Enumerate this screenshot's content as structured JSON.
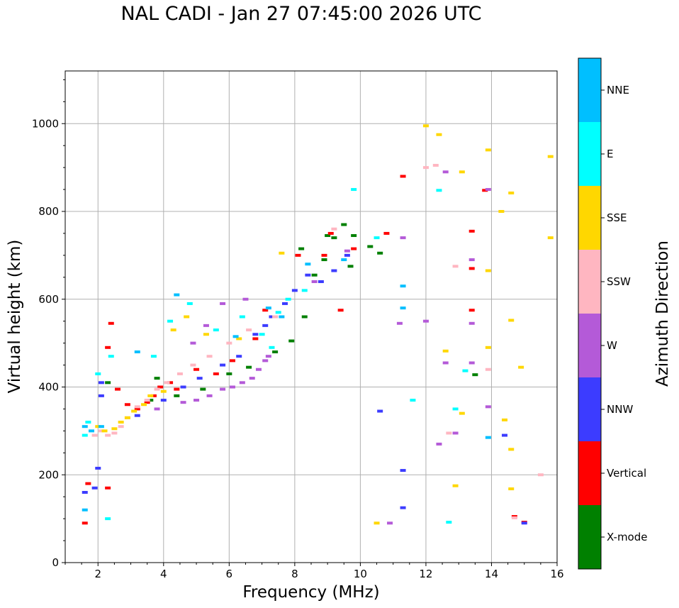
{
  "chart_data": {
    "type": "scatter",
    "title": "NAL CADI - Jan 27 07:45:00 2026 UTC",
    "xlabel": "Frequency (MHz)",
    "ylabel": "Virtual height (km)",
    "xlim": [
      1,
      16
    ],
    "ylim": [
      0,
      1120
    ],
    "xticks": [
      2,
      4,
      6,
      8,
      10,
      12,
      14,
      16
    ],
    "yticks": [
      0,
      200,
      400,
      600,
      800,
      1000
    ],
    "grid": true,
    "colorbar": {
      "label": "Azimuth Direction",
      "categories": [
        "X-mode",
        "Vertical",
        "NNW",
        "W",
        "SSW",
        "SSE",
        "E",
        "NNE"
      ],
      "colors": [
        "#008000",
        "#ff0000",
        "#3c3cff",
        "#b45ad8",
        "#ffb6c1",
        "#ffd700",
        "#00ffff",
        "#00bfff"
      ]
    },
    "series": [
      {
        "name": "X-mode",
        "points": [
          [
            3.6,
            370
          ],
          [
            4.4,
            380
          ],
          [
            5.2,
            395
          ],
          [
            6.0,
            430
          ],
          [
            6.6,
            445
          ],
          [
            7.4,
            480
          ],
          [
            7.9,
            505
          ],
          [
            8.3,
            560
          ],
          [
            8.6,
            655
          ],
          [
            8.9,
            690
          ],
          [
            9.0,
            745
          ],
          [
            9.2,
            740
          ],
          [
            9.5,
            770
          ],
          [
            9.8,
            745
          ],
          [
            10.3,
            720
          ],
          [
            10.6,
            705
          ],
          [
            13.5,
            428
          ],
          [
            3.8,
            420
          ],
          [
            2.3,
            410
          ],
          [
            8.2,
            715
          ],
          [
            9.7,
            675
          ]
        ]
      },
      {
        "name": "Vertical",
        "points": [
          [
            1.6,
            90
          ],
          [
            1.7,
            180
          ],
          [
            2.3,
            170
          ],
          [
            2.4,
            545
          ],
          [
            2.3,
            490
          ],
          [
            2.9,
            360
          ],
          [
            3.2,
            350
          ],
          [
            3.5,
            365
          ],
          [
            3.7,
            380
          ],
          [
            3.9,
            400
          ],
          [
            4.2,
            410
          ],
          [
            4.4,
            395
          ],
          [
            5.0,
            440
          ],
          [
            5.6,
            430
          ],
          [
            6.1,
            460
          ],
          [
            6.8,
            510
          ],
          [
            7.1,
            575
          ],
          [
            8.1,
            700
          ],
          [
            8.9,
            700
          ],
          [
            9.4,
            575
          ],
          [
            9.8,
            715
          ],
          [
            10.8,
            750
          ],
          [
            11.3,
            880
          ],
          [
            13.4,
            755
          ],
          [
            13.4,
            670
          ],
          [
            13.4,
            575
          ],
          [
            13.8,
            848
          ],
          [
            14.7,
            105
          ],
          [
            15.0,
            92
          ],
          [
            9.1,
            750
          ],
          [
            2.6,
            395
          ]
        ]
      },
      {
        "name": "NNW",
        "points": [
          [
            1.6,
            160
          ],
          [
            1.9,
            170
          ],
          [
            2.0,
            215
          ],
          [
            2.1,
            380
          ],
          [
            3.2,
            335
          ],
          [
            4.0,
            370
          ],
          [
            4.6,
            400
          ],
          [
            5.1,
            420
          ],
          [
            5.8,
            450
          ],
          [
            6.3,
            470
          ],
          [
            6.8,
            520
          ],
          [
            7.1,
            540
          ],
          [
            7.3,
            560
          ],
          [
            7.7,
            590
          ],
          [
            8.0,
            620
          ],
          [
            8.4,
            655
          ],
          [
            8.8,
            640
          ],
          [
            9.2,
            665
          ],
          [
            9.6,
            700
          ],
          [
            10.6,
            345
          ],
          [
            11.3,
            125
          ],
          [
            11.3,
            210
          ],
          [
            15.0,
            90
          ],
          [
            14.4,
            290
          ],
          [
            2.1,
            410
          ]
        ]
      },
      {
        "name": "W",
        "points": [
          [
            3.8,
            350
          ],
          [
            4.6,
            365
          ],
          [
            5.0,
            370
          ],
          [
            5.4,
            380
          ],
          [
            5.8,
            395
          ],
          [
            6.1,
            400
          ],
          [
            6.4,
            410
          ],
          [
            6.7,
            420
          ],
          [
            6.9,
            440
          ],
          [
            7.1,
            460
          ],
          [
            7.2,
            470
          ],
          [
            4.9,
            500
          ],
          [
            5.3,
            540
          ],
          [
            5.8,
            590
          ],
          [
            6.5,
            600
          ],
          [
            8.6,
            640
          ],
          [
            9.6,
            710
          ],
          [
            11.2,
            545
          ],
          [
            11.3,
            740
          ],
          [
            12.0,
            550
          ],
          [
            12.4,
            270
          ],
          [
            12.6,
            455
          ],
          [
            12.9,
            295
          ],
          [
            13.4,
            690
          ],
          [
            13.4,
            545
          ],
          [
            13.4,
            455
          ],
          [
            13.9,
            355
          ],
          [
            13.9,
            850
          ],
          [
            12.6,
            890
          ],
          [
            10.9,
            90
          ]
        ]
      },
      {
        "name": "SSW",
        "points": [
          [
            1.9,
            290
          ],
          [
            2.1,
            300
          ],
          [
            2.3,
            290
          ],
          [
            2.5,
            295
          ],
          [
            2.7,
            310
          ],
          [
            2.9,
            330
          ],
          [
            3.2,
            355
          ],
          [
            3.5,
            370
          ],
          [
            3.8,
            395
          ],
          [
            4.1,
            410
          ],
          [
            4.5,
            430
          ],
          [
            4.9,
            450
          ],
          [
            5.4,
            470
          ],
          [
            6.0,
            500
          ],
          [
            6.6,
            530
          ],
          [
            7.4,
            560
          ],
          [
            9.2,
            760
          ],
          [
            12.7,
            295
          ],
          [
            12.9,
            675
          ],
          [
            13.9,
            440
          ],
          [
            15.5,
            200
          ],
          [
            12.3,
            905
          ],
          [
            12.0,
            900
          ],
          [
            14.7,
            102
          ]
        ]
      },
      {
        "name": "SSE",
        "points": [
          [
            2.0,
            310
          ],
          [
            2.2,
            300
          ],
          [
            2.5,
            305
          ],
          [
            2.7,
            320
          ],
          [
            2.9,
            330
          ],
          [
            3.1,
            345
          ],
          [
            3.4,
            360
          ],
          [
            3.6,
            380
          ],
          [
            4.0,
            390
          ],
          [
            4.3,
            530
          ],
          [
            4.7,
            560
          ],
          [
            5.3,
            520
          ],
          [
            6.3,
            510
          ],
          [
            7.6,
            705
          ],
          [
            10.5,
            90
          ],
          [
            12.0,
            995
          ],
          [
            12.4,
            975
          ],
          [
            12.6,
            482
          ],
          [
            13.1,
            340
          ],
          [
            13.1,
            890
          ],
          [
            12.9,
            175
          ],
          [
            13.9,
            940
          ],
          [
            13.9,
            490
          ],
          [
            13.9,
            665
          ],
          [
            14.4,
            325
          ],
          [
            14.6,
            258
          ],
          [
            14.6,
            168
          ],
          [
            14.6,
            842
          ],
          [
            14.6,
            552
          ],
          [
            14.9,
            445
          ],
          [
            15.8,
            925
          ],
          [
            15.8,
            740
          ],
          [
            14.3,
            800
          ]
        ]
      },
      {
        "name": "E",
        "points": [
          [
            1.6,
            290
          ],
          [
            1.7,
            320
          ],
          [
            2.0,
            430
          ],
          [
            2.4,
            470
          ],
          [
            3.7,
            470
          ],
          [
            4.2,
            550
          ],
          [
            4.8,
            590
          ],
          [
            5.6,
            530
          ],
          [
            6.4,
            560
          ],
          [
            7.0,
            520
          ],
          [
            7.5,
            570
          ],
          [
            7.8,
            600
          ],
          [
            8.3,
            620
          ],
          [
            9.8,
            850
          ],
          [
            10.5,
            740
          ],
          [
            11.6,
            370
          ],
          [
            12.4,
            848
          ],
          [
            12.7,
            92
          ],
          [
            12.9,
            350
          ],
          [
            13.2,
            437
          ],
          [
            2.3,
            100
          ],
          [
            7.3,
            490
          ]
        ]
      },
      {
        "name": "NNE",
        "points": [
          [
            1.6,
            310
          ],
          [
            1.8,
            300
          ],
          [
            2.1,
            310
          ],
          [
            3.2,
            480
          ],
          [
            4.4,
            610
          ],
          [
            6.2,
            515
          ],
          [
            7.2,
            580
          ],
          [
            7.6,
            560
          ],
          [
            8.4,
            680
          ],
          [
            9.5,
            690
          ],
          [
            11.3,
            630
          ],
          [
            11.3,
            580
          ],
          [
            13.9,
            285
          ],
          [
            1.6,
            120
          ]
        ]
      }
    ]
  }
}
